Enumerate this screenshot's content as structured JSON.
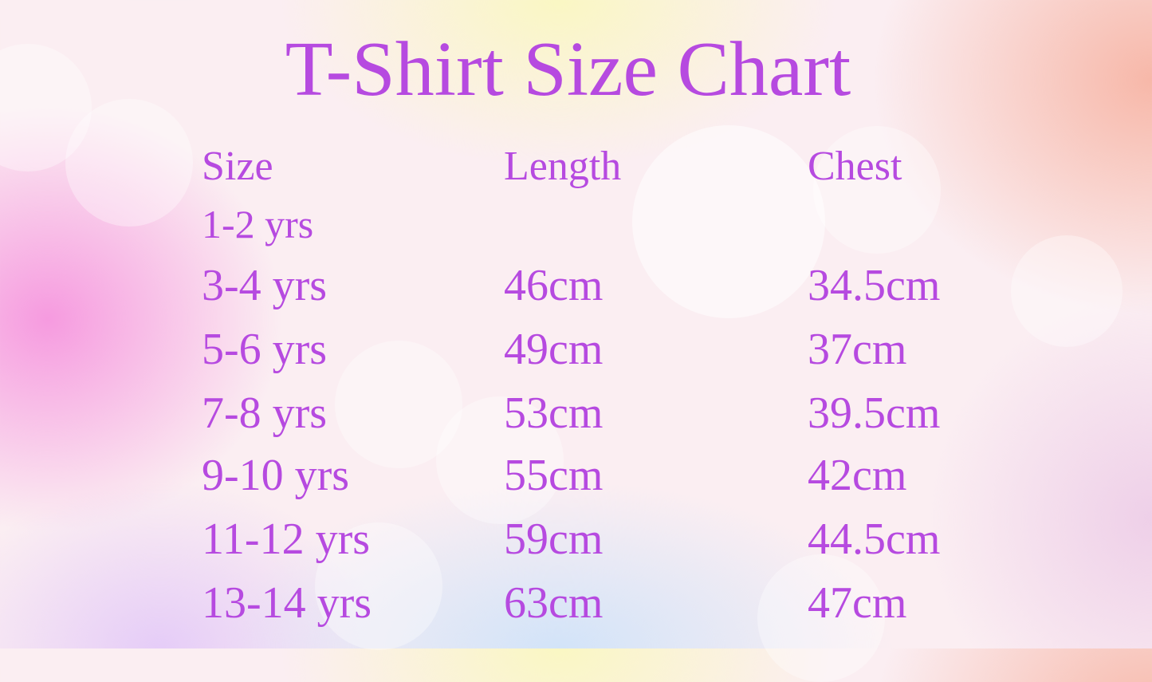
{
  "title": "T-Shirt Size Chart",
  "colors": {
    "text": "#b64ae0"
  },
  "table": {
    "headers": [
      "Size",
      "Length",
      "Chest"
    ],
    "rows": [
      {
        "size": "1-2 yrs",
        "length": "",
        "chest": ""
      },
      {
        "size": "3-4 yrs",
        "length": "46cm",
        "chest": "34.5cm"
      },
      {
        "size": "5-6 yrs",
        "length": "49cm",
        "chest": "37cm"
      },
      {
        "size": "7-8 yrs",
        "length": "53cm",
        "chest": "39.5cm"
      },
      {
        "size": "9-10 yrs",
        "length": "55cm",
        "chest": "42cm"
      },
      {
        "size": "11-12 yrs",
        "length": "59cm",
        "chest": "44.5cm"
      },
      {
        "size": "13-14 yrs",
        "length": "63cm",
        "chest": "47cm"
      }
    ]
  }
}
